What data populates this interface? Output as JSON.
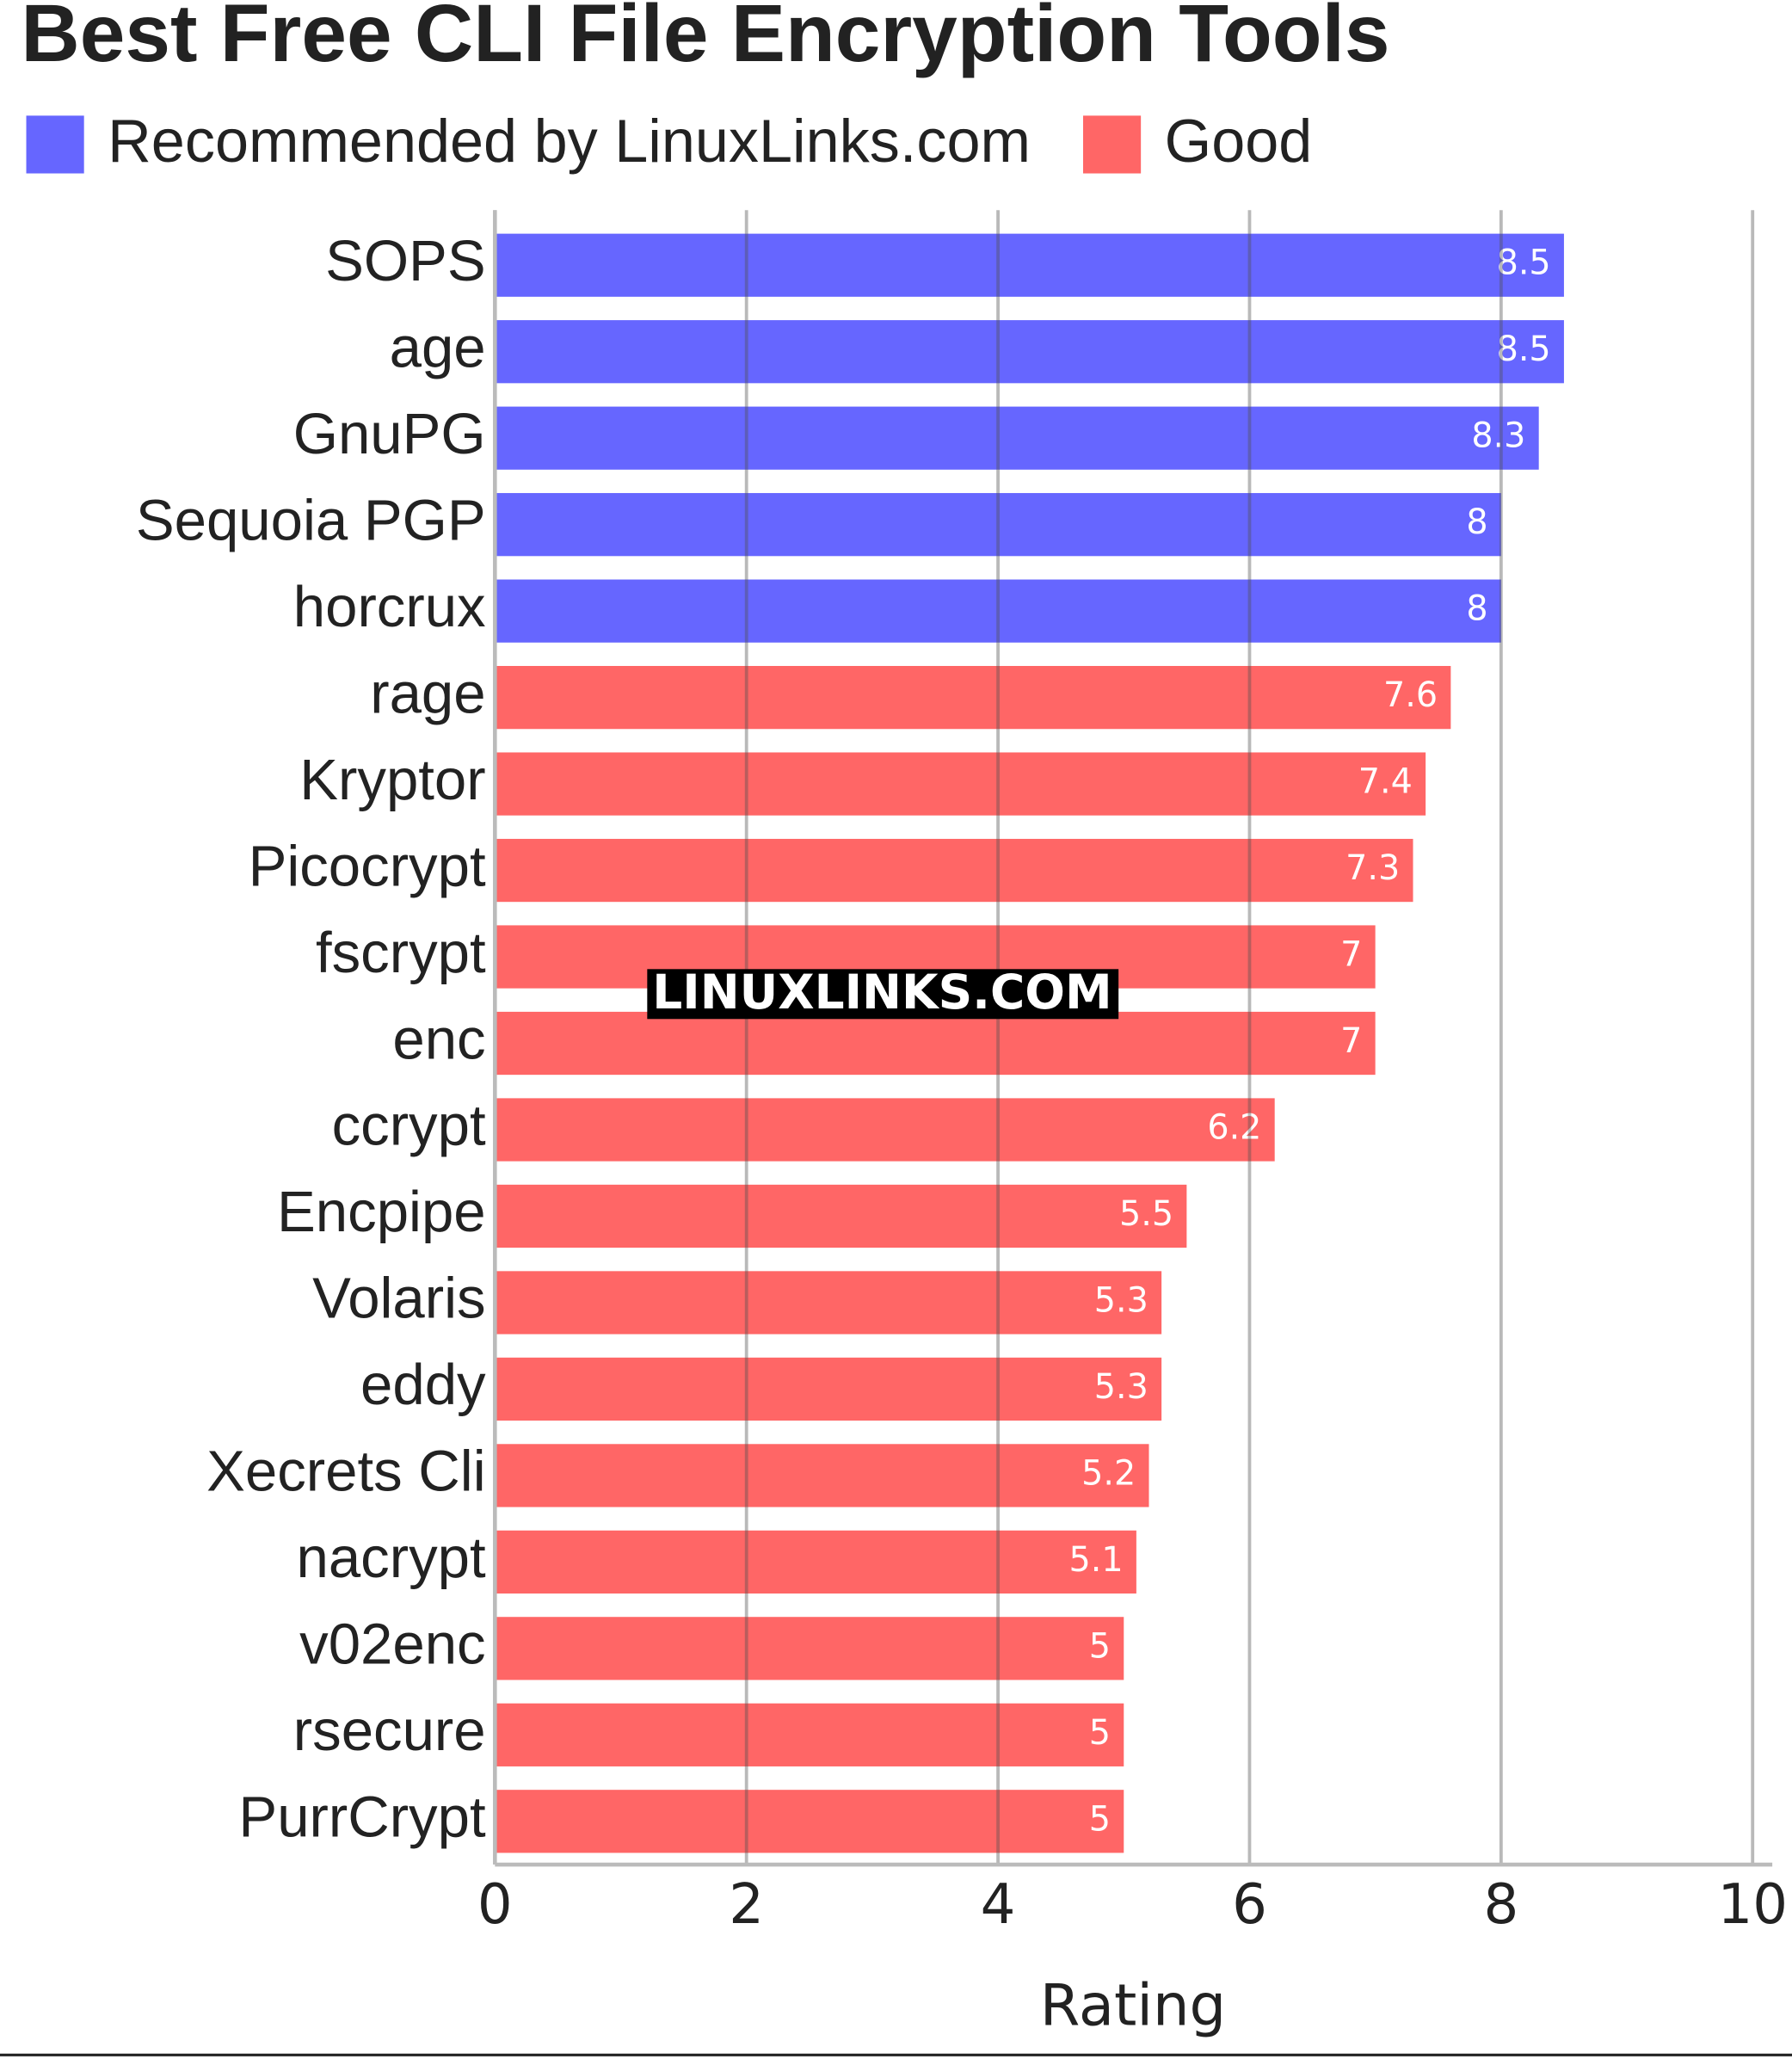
{
  "chart_data": {
    "type": "bar",
    "orientation": "horizontal",
    "title": "Best Free CLI File Encryption Tools",
    "categories": [
      "SOPS",
      "age",
      "GnuPG",
      "Sequoia PGP",
      "horcrux",
      "rage",
      "Kryptor",
      "Picocrypt",
      "fscrypt",
      "enc",
      "ccrypt",
      "Encpipe",
      "Volaris",
      "eddy",
      "Xecrets Cli",
      "nacrypt",
      "v02enc",
      "rsecure",
      "PurrCrypt"
    ],
    "series": [
      {
        "name": "Recommended by LinuxLinks.com",
        "color": "#6666ff",
        "values": [
          8.5,
          8.5,
          8.3,
          8,
          8,
          null,
          null,
          null,
          null,
          null,
          null,
          null,
          null,
          null,
          null,
          null,
          null,
          null,
          null
        ]
      },
      {
        "name": "Good",
        "color": "#ff6666",
        "values": [
          null,
          null,
          null,
          null,
          null,
          7.6,
          7.4,
          7.3,
          7,
          7,
          6.2,
          5.5,
          5.3,
          5.3,
          5.2,
          5.1,
          5,
          5,
          5
        ]
      }
    ],
    "xlabel": "Rating",
    "xlim": [
      0,
      10
    ],
    "xticks": [
      0,
      2,
      4,
      6,
      8,
      10
    ],
    "grid": true,
    "legend": "top-left",
    "watermark": "LINUXLINKS.COM"
  }
}
